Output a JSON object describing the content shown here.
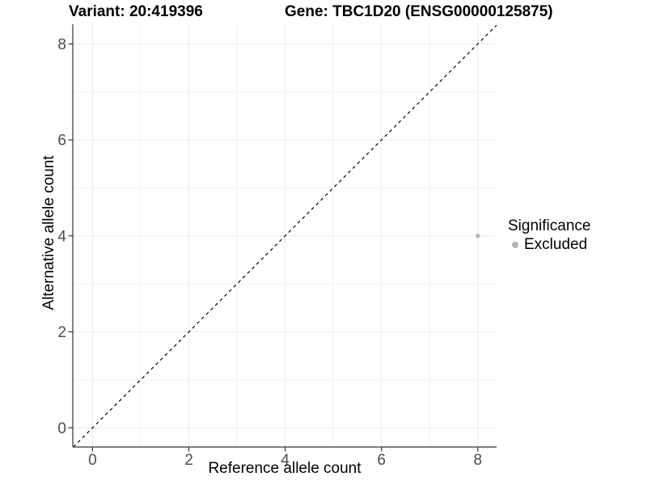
{
  "colors": {
    "background": "#ffffff",
    "grid_major": "#ebebeb",
    "grid_minor": "#f3f3f3",
    "axis": "#333333",
    "tick_label": "#4d4d4d",
    "point": "#b4b4b4",
    "reference_line": "#000000"
  },
  "chart_data": {
    "type": "scatter",
    "titles": {
      "left": "Variant: 20:419396",
      "right": "Gene: TBC1D20 (ENSG00000125875)"
    },
    "xlabel": "Reference allele count",
    "ylabel": "Alternative allele count",
    "xlim": [
      -0.41,
      8.39
    ],
    "ylim": [
      -0.4,
      8.41
    ],
    "x_ticks": [
      0,
      2,
      4,
      6,
      8
    ],
    "y_ticks": [
      0,
      2,
      4,
      6,
      8
    ],
    "x_minor_ticks": [
      1,
      3,
      5,
      7
    ],
    "y_minor_ticks": [
      1,
      3,
      5,
      7
    ],
    "grid": true,
    "series": [
      {
        "name": "Excluded",
        "color": "#b4b4b4",
        "points": [
          {
            "x": 8,
            "y": 4
          }
        ]
      }
    ],
    "reference_line": {
      "type": "identity",
      "style": "dashed",
      "color": "#000000"
    },
    "legend": {
      "title": "Significance",
      "position": "right",
      "items": [
        {
          "label": "Excluded",
          "color": "#b4b4b4"
        }
      ]
    }
  }
}
